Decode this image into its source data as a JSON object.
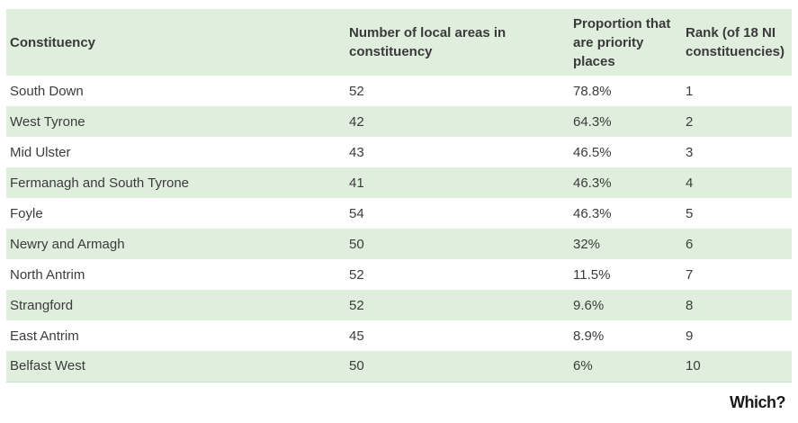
{
  "table": {
    "headers": [
      "Constituency",
      "Number of local areas in constituency",
      "Proportion that are priority places",
      "Rank (of 18 NI constituencies)"
    ],
    "rows": [
      [
        "South Down",
        "52",
        "78.8%",
        "1"
      ],
      [
        "West Tyrone",
        "42",
        "64.3%",
        "2"
      ],
      [
        "Mid Ulster",
        "43",
        "46.5%",
        "3"
      ],
      [
        "Fermanagh and South Tyrone",
        "41",
        "46.3%",
        "4"
      ],
      [
        "Foyle",
        "54",
        "46.3%",
        "5"
      ],
      [
        "Newry and Armagh",
        "50",
        "32%",
        "6"
      ],
      [
        "North Antrim",
        "52",
        "11.5%",
        "7"
      ],
      [
        "Strangford",
        "52",
        "9.6%",
        "8"
      ],
      [
        "East Antrim",
        "45",
        "8.9%",
        "9"
      ],
      [
        "Belfast West",
        "50",
        "6%",
        "10"
      ]
    ]
  },
  "logo": {
    "text": "Which?"
  },
  "colors": {
    "stripe": "#dfeedd",
    "text": "#3c3c3c"
  }
}
